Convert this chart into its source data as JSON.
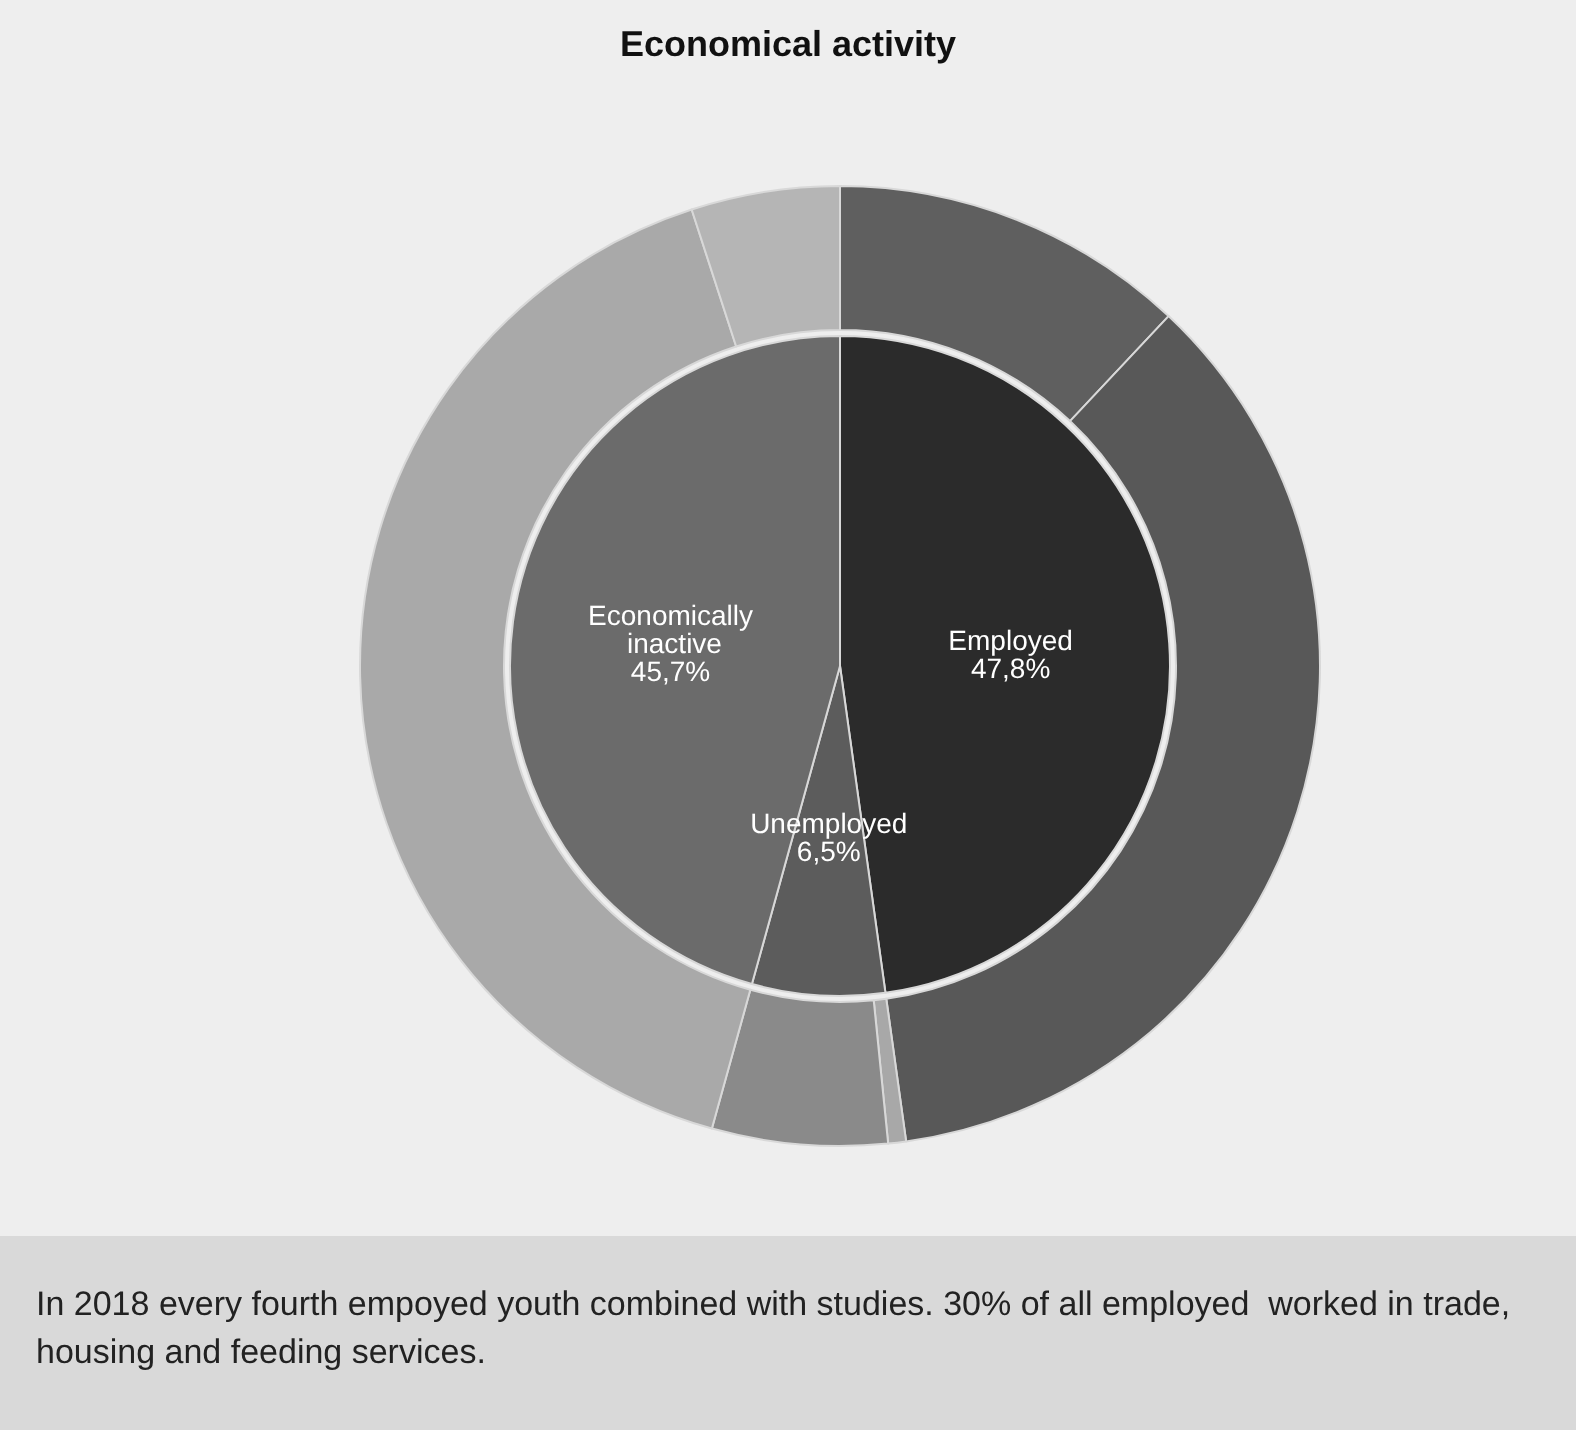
{
  "chart_data": [
    {
      "type": "pie",
      "title": "Economical activity",
      "categories": [
        "Employed",
        "Unemployed",
        "Economically inactive"
      ],
      "values": [
        47.8,
        6.5,
        45.7
      ],
      "colors": [
        "#2b2b2b",
        "#5c5c5c",
        "#6b6b6b"
      ],
      "value_labels": [
        "47,8%",
        "6,5%",
        "45,7%"
      ],
      "legend": false,
      "annotations": [
        "In 2018 every fourth empoyed youth combined with studies. 30% of all employed  worked in trade, housing and feeding services."
      ]
    },
    {
      "type": "donut",
      "categories": [
        null,
        null,
        null,
        null,
        null,
        null
      ],
      "values": [
        12,
        35.8,
        0.6,
        5.9,
        40.7,
        5
      ],
      "colors": [
        "#5f5f5f",
        "#585858",
        "#a8a8a8",
        "#8a8a8a",
        "#a9a9a9",
        "#b5b5b5"
      ]
    }
  ]
}
